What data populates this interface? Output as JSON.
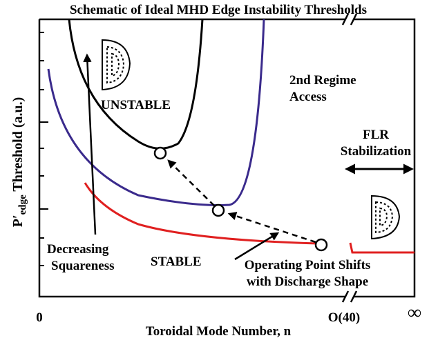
{
  "title": "Schematic of Ideal MHD Edge Instability Thresholds",
  "y_axis": {
    "label_main": "P′",
    "label_sub": "edge",
    "label_rest": " Threshold (a.u.)"
  },
  "x_axis": {
    "label": "Toroidal Mode Number, n",
    "tick_labels": [
      "0",
      "O(40)",
      "∞"
    ]
  },
  "annotations": {
    "unstable": "UNSTABLE",
    "second_regime": [
      "2nd Regime",
      "Access"
    ],
    "flr": [
      "FLR",
      "Stabilization"
    ],
    "stable": "STABLE",
    "squareness": [
      "Decreasing",
      "Squareness"
    ],
    "operating_point": [
      "Operating Point Shifts",
      "with Discharge Shape"
    ]
  }
}
